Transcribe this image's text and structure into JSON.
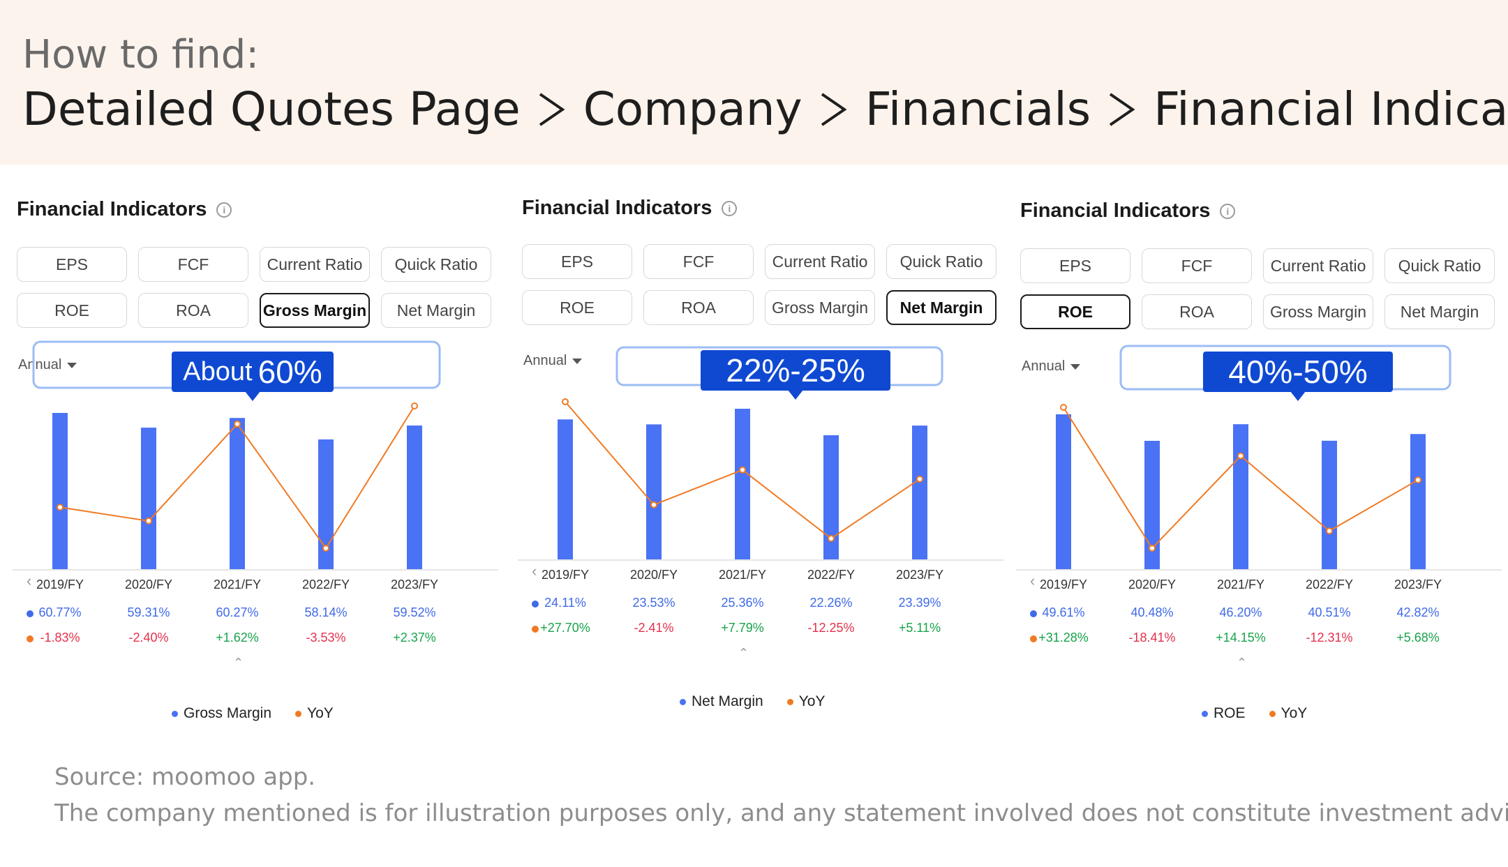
{
  "header": {
    "how_to": "How to find:",
    "path": [
      "Detailed Quotes Page",
      "Company",
      "Financials",
      "Financial Indicators"
    ]
  },
  "colors": {
    "bar": "#4a72f5",
    "line": "#f07a24",
    "callout": "#0f49d2",
    "highlight": "#9cbcf5",
    "banner": "#fcf3ec"
  },
  "panels": [
    {
      "title": "Financial Indicators",
      "tabs": [
        "EPS",
        "FCF",
        "Current Ratio",
        "Quick Ratio",
        "ROE",
        "ROA",
        "Gross Margin",
        "Net Margin"
      ],
      "active_tab": "Gross Margin",
      "period": "Annual",
      "callout_small": "About",
      "callout": "60%",
      "years": [
        "2019/FY",
        "2020/FY",
        "2021/FY",
        "2022/FY",
        "2023/FY"
      ],
      "values": [
        "60.77%",
        "59.31%",
        "60.27%",
        "58.14%",
        "59.52%"
      ],
      "yoy": [
        "-1.83%",
        "-2.40%",
        "+1.62%",
        "-3.53%",
        "+2.37%"
      ],
      "legend": [
        "Gross Margin",
        "YoY"
      ]
    },
    {
      "title": "Financial Indicators",
      "tabs": [
        "EPS",
        "FCF",
        "Current Ratio",
        "Quick Ratio",
        "ROE",
        "ROA",
        "Gross Margin",
        "Net Margin"
      ],
      "active_tab": "Net Margin",
      "period": "Annual",
      "callout_small": "",
      "callout": "22%-25%",
      "years": [
        "2019/FY",
        "2020/FY",
        "2021/FY",
        "2022/FY",
        "2023/FY"
      ],
      "values": [
        "24.11%",
        "23.53%",
        "25.36%",
        "22.26%",
        "23.39%"
      ],
      "yoy": [
        "+27.70%",
        "-2.41%",
        "+7.79%",
        "-12.25%",
        "+5.11%"
      ],
      "legend": [
        "Net Margin",
        "YoY"
      ]
    },
    {
      "title": "Financial Indicators",
      "tabs": [
        "EPS",
        "FCF",
        "Current Ratio",
        "Quick Ratio",
        "ROE",
        "ROA",
        "Gross Margin",
        "Net Margin"
      ],
      "active_tab": "ROE",
      "period": "Annual",
      "callout_small": "",
      "callout": "40%-50%",
      "years": [
        "2019/FY",
        "2020/FY",
        "2021/FY",
        "2022/FY",
        "2023/FY"
      ],
      "values": [
        "49.61%",
        "40.48%",
        "46.20%",
        "40.51%",
        "42.82%"
      ],
      "yoy": [
        "+31.28%",
        "-18.41%",
        "+14.15%",
        "-12.31%",
        "+5.68%"
      ],
      "legend": [
        "ROE",
        "YoY"
      ]
    }
  ],
  "chart_data": [
    {
      "type": "bar",
      "categories": [
        "2019/FY",
        "2020/FY",
        "2021/FY",
        "2022/FY",
        "2023/FY"
      ],
      "series": [
        {
          "name": "Gross Margin",
          "values": [
            60.77,
            59.31,
            60.27,
            58.14,
            59.52
          ]
        },
        {
          "name": "YoY",
          "values": [
            -1.83,
            -2.4,
            1.62,
            -3.53,
            2.37
          ]
        }
      ]
    },
    {
      "type": "bar",
      "categories": [
        "2019/FY",
        "2020/FY",
        "2021/FY",
        "2022/FY",
        "2023/FY"
      ],
      "series": [
        {
          "name": "Net Margin",
          "values": [
            24.11,
            23.53,
            25.36,
            22.26,
            23.39
          ]
        },
        {
          "name": "YoY",
          "values": [
            27.7,
            -2.41,
            7.79,
            -12.25,
            5.11
          ]
        }
      ]
    },
    {
      "type": "bar",
      "categories": [
        "2019/FY",
        "2020/FY",
        "2021/FY",
        "2022/FY",
        "2023/FY"
      ],
      "series": [
        {
          "name": "ROE",
          "values": [
            49.61,
            40.48,
            46.2,
            40.51,
            42.82
          ]
        },
        {
          "name": "YoY",
          "values": [
            31.28,
            -18.41,
            14.15,
            -12.31,
            5.68
          ]
        }
      ]
    }
  ],
  "footer": {
    "source": "Source: moomoo app.",
    "disclaimer": "The company mentioned is for illustration purposes only, and any statement involved does not constitute investment advice."
  }
}
